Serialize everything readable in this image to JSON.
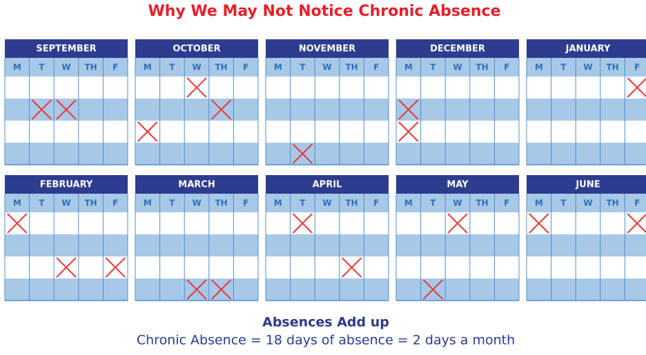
{
  "title": "Why We May Not Notice Chronic Absence",
  "weekdays": [
    "M",
    "T",
    "W",
    "TH",
    "F"
  ],
  "months": [
    {
      "name": "SEPTEMBER",
      "absences": [
        [
          1,
          1
        ],
        [
          1,
          2
        ]
      ]
    },
    {
      "name": "OCTOBER",
      "absences": [
        [
          0,
          2
        ],
        [
          1,
          3
        ],
        [
          2,
          0
        ]
      ]
    },
    {
      "name": "NOVEMBER",
      "absences": [
        [
          3,
          1
        ]
      ]
    },
    {
      "name": "DECEMBER",
      "absences": [
        [
          1,
          0
        ],
        [
          2,
          0
        ]
      ]
    },
    {
      "name": "JANUARY",
      "absences": [
        [
          0,
          4
        ]
      ]
    },
    {
      "name": "FEBRUARY",
      "absences": [
        [
          0,
          0
        ],
        [
          2,
          2
        ],
        [
          2,
          4
        ]
      ]
    },
    {
      "name": "MARCH",
      "absences": [
        [
          3,
          2
        ],
        [
          3,
          3
        ]
      ]
    },
    {
      "name": "APRIL",
      "absences": [
        [
          0,
          1
        ],
        [
          2,
          3
        ]
      ]
    },
    {
      "name": "MAY",
      "absences": [
        [
          0,
          2
        ],
        [
          3,
          1
        ]
      ]
    },
    {
      "name": "JUNE",
      "absences": [
        [
          0,
          0
        ],
        [
          0,
          4
        ]
      ]
    }
  ],
  "footer": {
    "heading": "Absences Add up",
    "text": "Chronic Absence = 18 days of absence = 2 days a month"
  }
}
